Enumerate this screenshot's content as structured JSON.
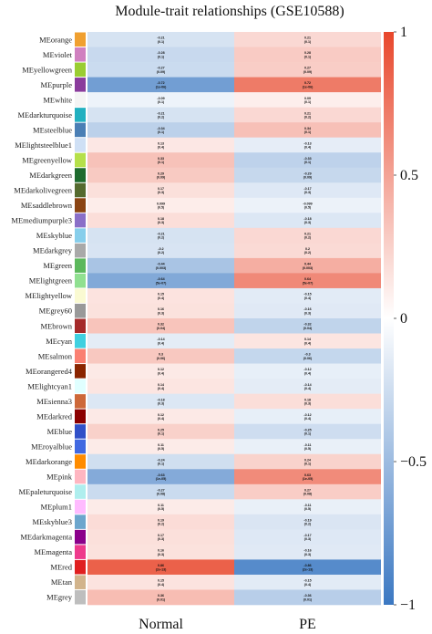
{
  "chart_data": {
    "type": "heatmap",
    "title": "Module-trait relationships (GSE10588)",
    "columns": [
      "Normal",
      "PE"
    ],
    "rows": [
      {
        "module": "MEorange",
        "swatch": "#f0a030",
        "normal": [
          -0.21,
          0.1
        ],
        "pe": [
          0.21,
          0.1
        ]
      },
      {
        "module": "MEviolet",
        "swatch": "#d080c0",
        "normal": [
          -0.28,
          0.1
        ],
        "pe": [
          0.28,
          0.1
        ]
      },
      {
        "module": "MEyellowgreen",
        "swatch": "#9acd32",
        "normal": [
          -0.27,
          0.09
        ],
        "pe": [
          0.27,
          0.09
        ]
      },
      {
        "module": "MEpurple",
        "swatch": "#8a3c9c",
        "normal": [
          -0.72,
          "1e-06"
        ],
        "pe": [
          0.72,
          "1e-06"
        ]
      },
      {
        "module": "MEwhite",
        "swatch": "#f4f4f4",
        "normal": [
          -0.09,
          0.1
        ],
        "pe": [
          0.09,
          0.1
        ]
      },
      {
        "module": "MEdarkturquoise",
        "swatch": "#22b0c0",
        "normal": [
          -0.21,
          0.2
        ],
        "pe": [
          0.21,
          0.2
        ]
      },
      {
        "module": "MEsteelblue",
        "swatch": "#4a7fb5",
        "normal": [
          -0.34,
          0.1
        ],
        "pe": [
          0.34,
          0.1
        ]
      },
      {
        "module": "MElightsteelblue1",
        "swatch": "#cfe0f5",
        "normal": [
          0.13,
          0.4
        ],
        "pe": [
          -0.13,
          0.4
        ]
      },
      {
        "module": "MEgreenyellow",
        "swatch": "#b5e04a",
        "normal": [
          0.33,
          0.1
        ],
        "pe": [
          -0.33,
          0.1
        ]
      },
      {
        "module": "MEdarkgreen",
        "swatch": "#1e6b2e",
        "normal": [
          0.29,
          0.09
        ],
        "pe": [
          -0.29,
          0.09
        ]
      },
      {
        "module": "MEdarkolivegreen",
        "swatch": "#556b2f",
        "normal": [
          0.17,
          0.3
        ],
        "pe": [
          -0.17,
          0.3
        ]
      },
      {
        "module": "MEsaddlebrown",
        "swatch": "#8b4513",
        "normal": [
          0.099,
          0.5
        ],
        "pe": [
          -0.099,
          0.5
        ]
      },
      {
        "module": "MEmediumpurple3",
        "swatch": "#8a6fc8",
        "normal": [
          0.18,
          0.3
        ],
        "pe": [
          -0.18,
          0.3
        ]
      },
      {
        "module": "MEskyblue",
        "swatch": "#87ceeb",
        "normal": [
          -0.21,
          0.2
        ],
        "pe": [
          0.21,
          0.2
        ]
      },
      {
        "module": "MEdarkgrey",
        "swatch": "#a9a9a9",
        "normal": [
          -0.2,
          0.2
        ],
        "pe": [
          0.2,
          0.2
        ]
      },
      {
        "module": "MEgreen",
        "swatch": "#5cb85c",
        "normal": [
          -0.44,
          0.003
        ],
        "pe": [
          0.44,
          0.003
        ]
      },
      {
        "module": "MElightgreen",
        "swatch": "#90e090",
        "normal": [
          -0.64,
          "5e-07"
        ],
        "pe": [
          0.64,
          "5e-07"
        ]
      },
      {
        "module": "MElightyellow",
        "swatch": "#fafad2",
        "normal": [
          0.15,
          0.4
        ],
        "pe": [
          -0.15,
          0.4
        ]
      },
      {
        "module": "MEgrey60",
        "swatch": "#999999",
        "normal": [
          0.16,
          0.3
        ],
        "pe": [
          -0.16,
          0.3
        ]
      },
      {
        "module": "MEbrown",
        "swatch": "#a52a2a",
        "normal": [
          0.32,
          0.04
        ],
        "pe": [
          -0.32,
          0.04
        ]
      },
      {
        "module": "MEcyan",
        "swatch": "#40d0e0",
        "normal": [
          -0.14,
          0.4
        ],
        "pe": [
          0.14,
          0.4
        ]
      },
      {
        "module": "MEsalmon",
        "swatch": "#fa8072",
        "normal": [
          0.3,
          0.06
        ],
        "pe": [
          -0.3,
          0.06
        ]
      },
      {
        "module": "MEorangered4",
        "swatch": "#8b2500",
        "normal": [
          0.12,
          0.4
        ],
        "pe": [
          -0.12,
          0.4
        ]
      },
      {
        "module": "MElightcyan1",
        "swatch": "#e0ffff",
        "normal": [
          0.14,
          0.4
        ],
        "pe": [
          -0.14,
          0.4
        ]
      },
      {
        "module": "MEsienna3",
        "swatch": "#cd6839",
        "normal": [
          -0.18,
          0.3
        ],
        "pe": [
          0.18,
          0.3
        ]
      },
      {
        "module": "MEdarkred",
        "swatch": "#8b0000",
        "normal": [
          0.12,
          0.4
        ],
        "pe": [
          -0.12,
          0.4
        ]
      },
      {
        "module": "MEblue",
        "swatch": "#3050c8",
        "normal": [
          0.25,
          0.1
        ],
        "pe": [
          -0.25,
          0.1
        ]
      },
      {
        "module": "MEroyalblue",
        "swatch": "#4169e1",
        "normal": [
          0.11,
          0.5
        ],
        "pe": [
          -0.11,
          0.5
        ]
      },
      {
        "module": "MEdarkorange",
        "swatch": "#ff8c00",
        "normal": [
          -0.24,
          0.1
        ],
        "pe": [
          0.24,
          0.1
        ]
      },
      {
        "module": "MEpink",
        "swatch": "#ffb6c1",
        "normal": [
          -0.63,
          "1e-05"
        ],
        "pe": [
          0.63,
          "1e-05"
        ]
      },
      {
        "module": "MEpaleturquoise",
        "swatch": "#afeeee",
        "normal": [
          -0.27,
          0.08
        ],
        "pe": [
          0.27,
          0.08
        ]
      },
      {
        "module": "MEplum1",
        "swatch": "#ffbbff",
        "normal": [
          0.11,
          0.5
        ],
        "pe": [
          -0.11,
          0.5
        ]
      },
      {
        "module": "MEskyblue3",
        "swatch": "#6ca6cd",
        "normal": [
          0.19,
          0.2
        ],
        "pe": [
          -0.19,
          0.2
        ]
      },
      {
        "module": "MEdarkmagenta",
        "swatch": "#8b008b",
        "normal": [
          0.17,
          0.3
        ],
        "pe": [
          -0.17,
          0.3
        ]
      },
      {
        "module": "MEmagenta",
        "swatch": "#ee3a8c",
        "normal": [
          0.16,
          0.3
        ],
        "pe": [
          -0.16,
          0.3
        ]
      },
      {
        "module": "MEred",
        "swatch": "#e02020",
        "normal": [
          0.86,
          "2e-13"
        ],
        "pe": [
          -0.86,
          "2e-13"
        ]
      },
      {
        "module": "MEtan",
        "swatch": "#d2b48c",
        "normal": [
          0.15,
          0.4
        ],
        "pe": [
          -0.15,
          0.4
        ]
      },
      {
        "module": "MEgrey",
        "swatch": "#bebebe",
        "normal": [
          0.36,
          0.01
        ],
        "pe": [
          -0.36,
          0.01
        ]
      }
    ],
    "colorbar": {
      "range": [
        -1,
        1
      ],
      "ticks": [
        {
          "value": 1,
          "label": "1"
        },
        {
          "value": 0.5,
          "label": "0.5"
        },
        {
          "value": 0,
          "label": "0"
        },
        {
          "value": -0.5,
          "label": "−0.5"
        },
        {
          "value": -1,
          "label": "−1"
        }
      ],
      "low_color": "#3b78c2",
      "mid_color": "#ffffff",
      "high_color": "#e8472c"
    }
  }
}
